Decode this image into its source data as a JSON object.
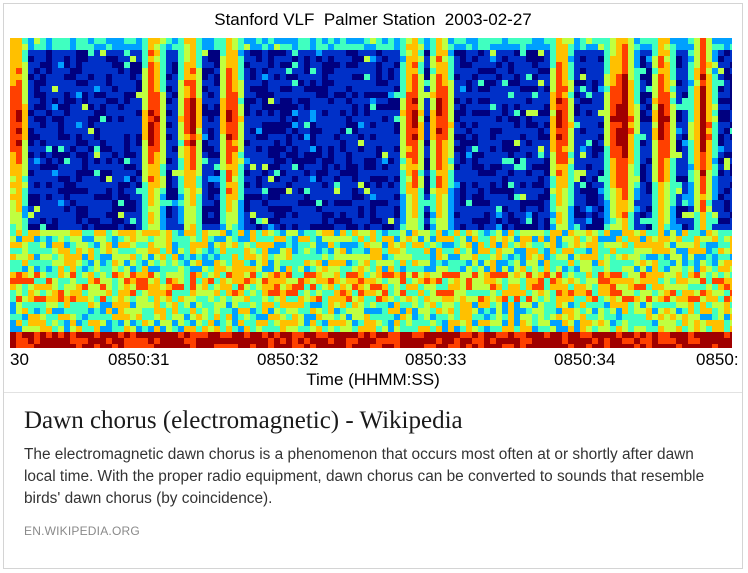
{
  "figure": {
    "title": "Stanford VLF  Palmer Station  2003-02-27",
    "x_ticks": [
      "30",
      "0850:31",
      "0850:32",
      "0850:33",
      "0850:34",
      "0850:"
    ],
    "xlabel": "Time (HHMM:SS)",
    "colors": {
      "background": "#00149a",
      "colormap": [
        "#00007f",
        "#0030c8",
        "#00a0ff",
        "#40ffc0",
        "#c0ff40",
        "#ffc000",
        "#ff4000",
        "#a00000"
      ]
    }
  },
  "result": {
    "title": "Dawn chorus (electromagnetic) - Wikipedia",
    "snippet": "The electromagnetic dawn chorus is a phenomenon that occurs most often at or shortly after dawn local time. With the proper radio equipment, dawn chorus can be converted to sounds that resemble birds' dawn chorus (by coincidence).",
    "source": "EN.WIKIPEDIA.ORG"
  }
}
